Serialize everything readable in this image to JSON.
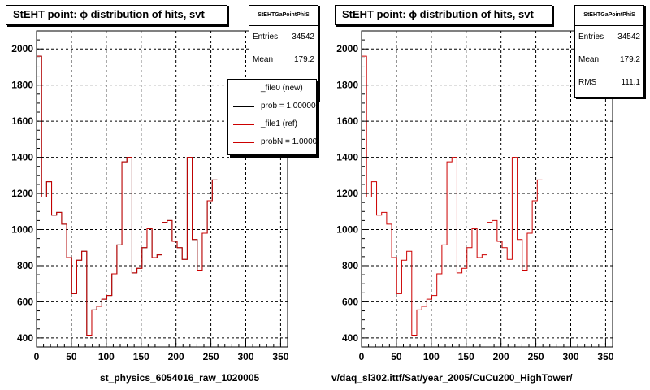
{
  "chart_data": [
    {
      "type": "histogram",
      "title": "StEHT point:  ϕ distribution of hits, svt",
      "xlim": [
        0,
        360
      ],
      "ylim": [
        350,
        2100
      ],
      "xticks": [
        0,
        50,
        100,
        150,
        200,
        250,
        300,
        350
      ],
      "yticks": [
        400,
        600,
        800,
        1000,
        1200,
        1400,
        1600,
        1800,
        2000
      ],
      "grid": true,
      "bin_width": 7.2,
      "series": [
        {
          "name": "_file0 (new)",
          "color": "#000000",
          "values": [
            1960,
            1180,
            1265,
            1080,
            1095,
            1030,
            845,
            645,
            830,
            880,
            415,
            555,
            575,
            615,
            635,
            755,
            915,
            1375,
            1400,
            760,
            785,
            900,
            1005,
            845,
            860,
            1040,
            1050,
            935,
            900,
            835,
            1400,
            945,
            775,
            980,
            1160,
            1275
          ]
        },
        {
          "name": "_file1 (ref)",
          "color": "#cc0000",
          "values": [
            1960,
            1180,
            1265,
            1080,
            1095,
            1030,
            845,
            645,
            830,
            880,
            415,
            555,
            575,
            615,
            635,
            755,
            915,
            1375,
            1400,
            760,
            785,
            900,
            1005,
            845,
            860,
            1040,
            1050,
            935,
            900,
            835,
            1400,
            945,
            775,
            980,
            1160,
            1275
          ]
        }
      ]
    },
    {
      "type": "histogram",
      "title": "StEHT point:  ϕ distribution of hits, svt",
      "xlim": [
        0,
        360
      ],
      "ylim": [
        350,
        2100
      ],
      "xticks": [
        0,
        50,
        100,
        150,
        200,
        250,
        300,
        350
      ],
      "yticks": [
        400,
        600,
        800,
        1000,
        1200,
        1400,
        1600,
        1800,
        2000
      ],
      "grid": true,
      "bin_width": 7.2,
      "series": [
        {
          "name": "",
          "color": "#cc0000",
          "values": [
            1960,
            1180,
            1265,
            1080,
            1095,
            1030,
            845,
            645,
            830,
            880,
            415,
            555,
            575,
            615,
            635,
            755,
            915,
            1375,
            1400,
            760,
            785,
            900,
            1005,
            845,
            860,
            1040,
            1050,
            935,
            900,
            835,
            1400,
            945,
            775,
            980,
            1160,
            1275
          ]
        }
      ]
    }
  ],
  "left": {
    "title": "StEHT point:  ϕ distribution of hits, svt",
    "stats": {
      "name": "StEHTGaPointPhiS",
      "entries_label": "Entries",
      "entries": "34542",
      "mean_label": "Mean",
      "mean": "179.2"
    },
    "legend": [
      {
        "label": "_file0 (new)",
        "color": "#000000"
      },
      {
        "label": "prob = 1.000000",
        "color": "#000000"
      },
      {
        "label": "_file1 (ref)",
        "color": "#cc0000"
      },
      {
        "label": "probN = 1.000000",
        "color": "#cc0000"
      }
    ],
    "footer": "st_physics_6054016_raw_1020005"
  },
  "right": {
    "title": "StEHT point:  ϕ distribution of hits, svt",
    "stats": {
      "name": "StEHTGaPointPhiS",
      "entries_label": "Entries",
      "entries": "34542",
      "mean_label": "Mean",
      "mean": "179.2",
      "rms_label": "RMS",
      "rms": "111.1"
    },
    "footer": "v/daq_sl302.ittf/Sat/year_2005/CuCu200_HighTower/"
  }
}
